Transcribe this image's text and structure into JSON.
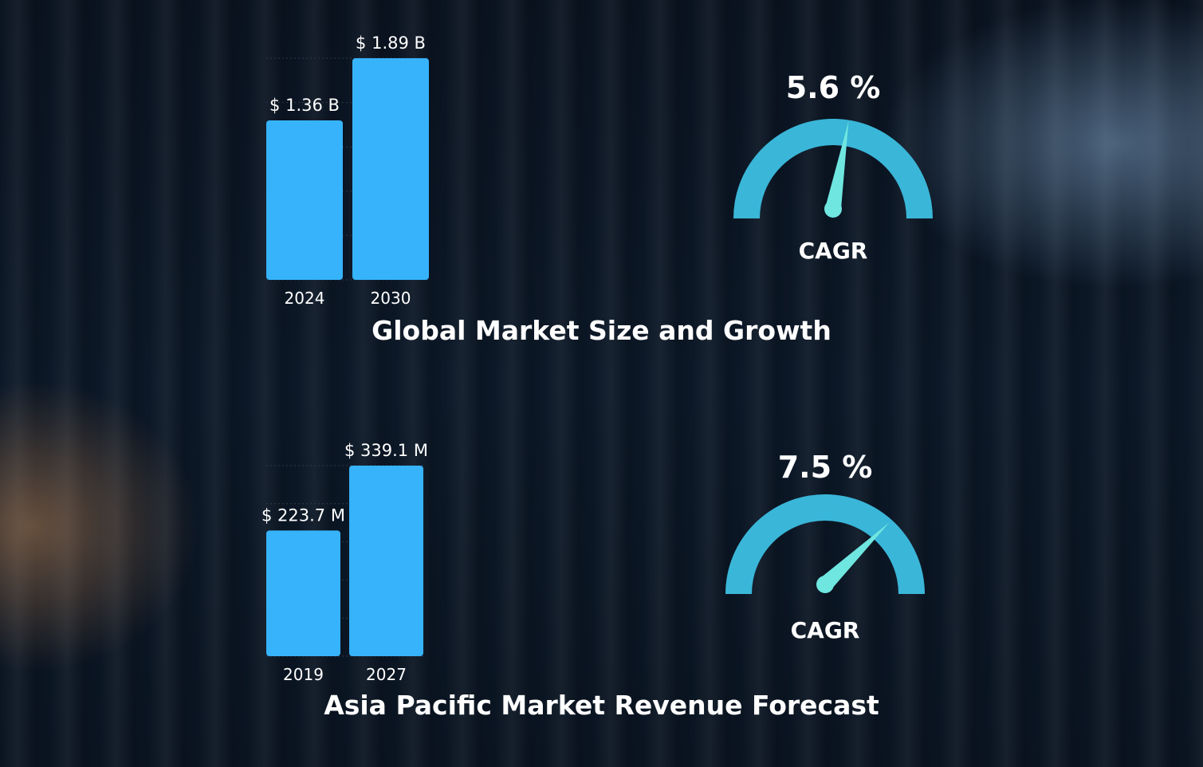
{
  "global": {
    "title": "Global Market Size and Growth",
    "gauge": {
      "value_text": "5.6 %",
      "value": 5.6,
      "label": "CAGR"
    }
  },
  "apac": {
    "title": "Asia Pacific Market Revenue Forecast",
    "gauge": {
      "value_text": "7.5 %",
      "value": 7.5,
      "label": "CAGR"
    }
  },
  "colors": {
    "bar": "#36b3fb",
    "gauge_arc": "#3ab6d8",
    "gauge_needle": "#6fe6e0"
  },
  "chart_data": [
    {
      "type": "bar",
      "categories": [
        "2024",
        "2030"
      ],
      "values": [
        1.36,
        1.89
      ],
      "value_labels": [
        "$ 1.36 B",
        "$ 1.89 B"
      ],
      "ylim": [
        0,
        1.89
      ]
    },
    {
      "type": "bar",
      "categories": [
        "2019",
        "2027"
      ],
      "values": [
        223.7,
        339.1
      ],
      "value_labels": [
        "$ 223.7 M",
        "$ 339.1 M"
      ],
      "ylim": [
        0,
        339.1
      ]
    }
  ]
}
